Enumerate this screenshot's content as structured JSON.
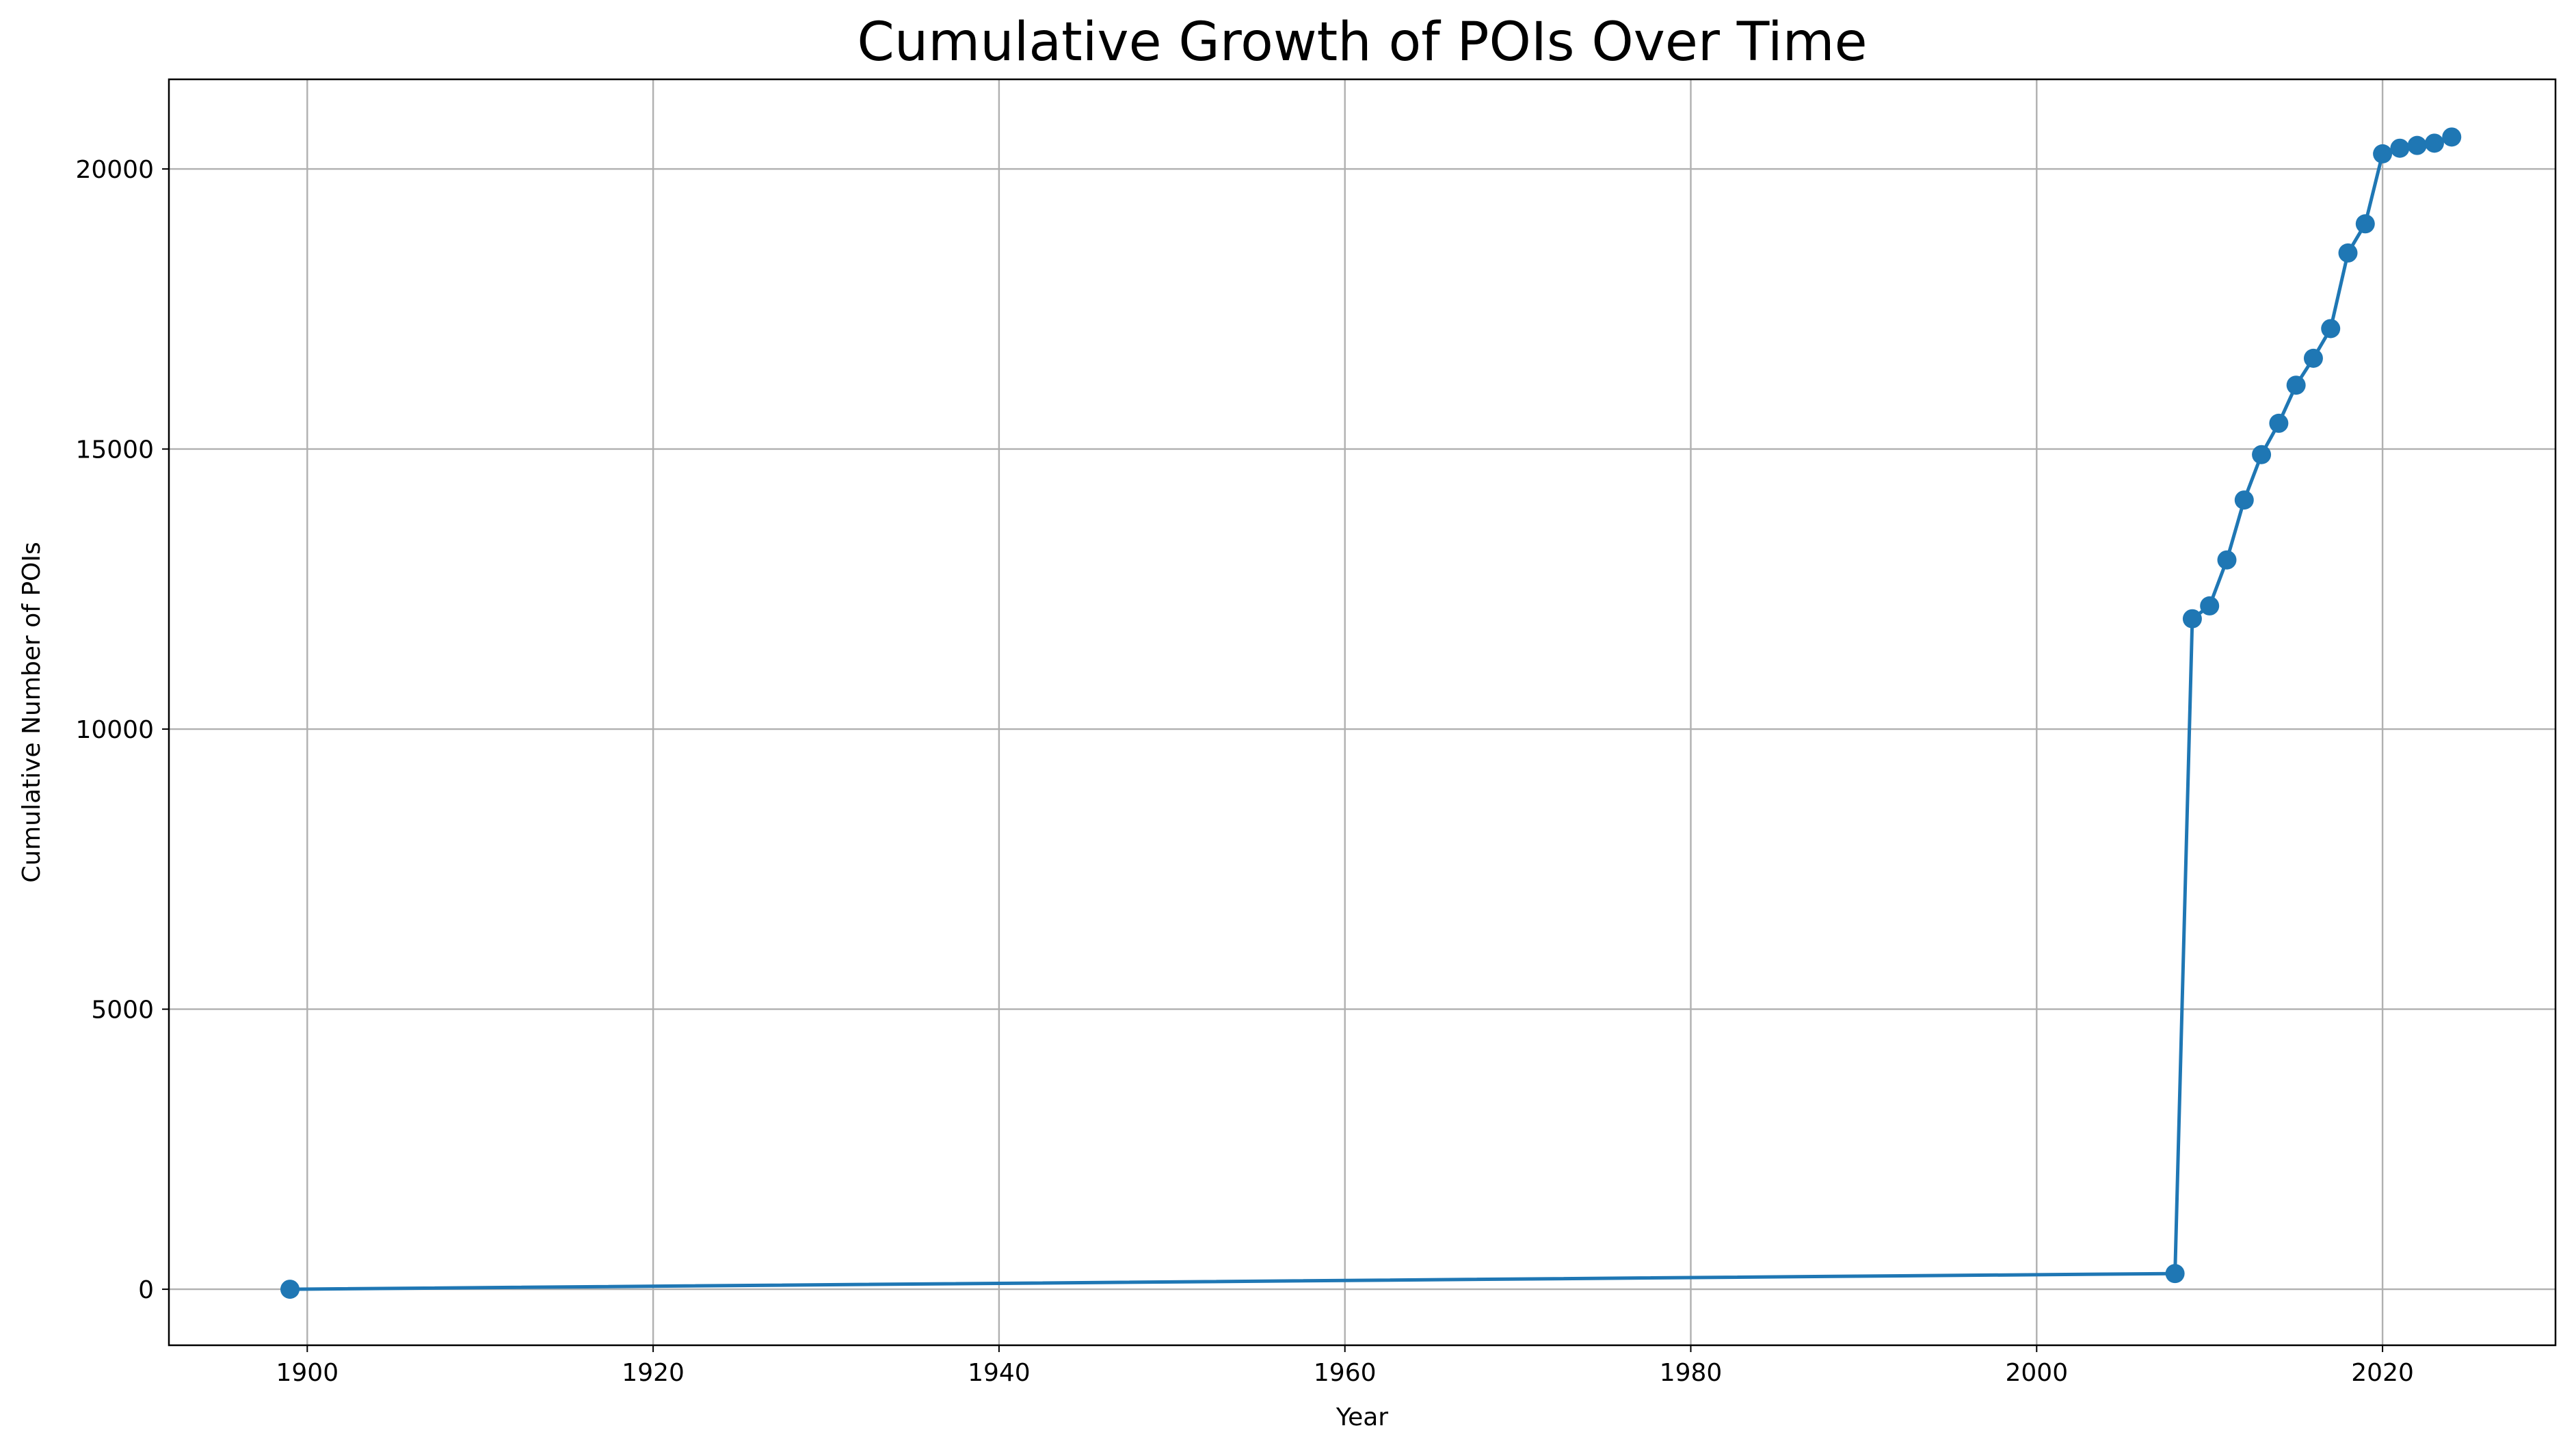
{
  "chart_data": {
    "type": "line",
    "title": "Cumulative Growth of POIs Over Time",
    "xlabel": "Year",
    "ylabel": "Cumulative Number of POIs",
    "xlim": [
      1892,
      2030
    ],
    "ylim": [
      -1000,
      21600
    ],
    "xticks": [
      1900,
      1920,
      1940,
      1960,
      1980,
      2000,
      2020
    ],
    "yticks": [
      0,
      5000,
      10000,
      15000,
      20000
    ],
    "grid": true,
    "marker": "circle",
    "series": [
      {
        "color": "#1f77b4",
        "points": [
          {
            "x": 1899,
            "y": 0
          },
          {
            "x": 2008,
            "y": 280
          },
          {
            "x": 2009,
            "y": 11970
          },
          {
            "x": 2010,
            "y": 12200
          },
          {
            "x": 2011,
            "y": 13020
          },
          {
            "x": 2012,
            "y": 14090
          },
          {
            "x": 2013,
            "y": 14900
          },
          {
            "x": 2014,
            "y": 15460
          },
          {
            "x": 2015,
            "y": 16140
          },
          {
            "x": 2016,
            "y": 16620
          },
          {
            "x": 2017,
            "y": 17150
          },
          {
            "x": 2018,
            "y": 18500
          },
          {
            "x": 2019,
            "y": 19020
          },
          {
            "x": 2020,
            "y": 20270
          },
          {
            "x": 2021,
            "y": 20370
          },
          {
            "x": 2022,
            "y": 20420
          },
          {
            "x": 2023,
            "y": 20460
          },
          {
            "x": 2024,
            "y": 20570
          }
        ]
      }
    ]
  }
}
